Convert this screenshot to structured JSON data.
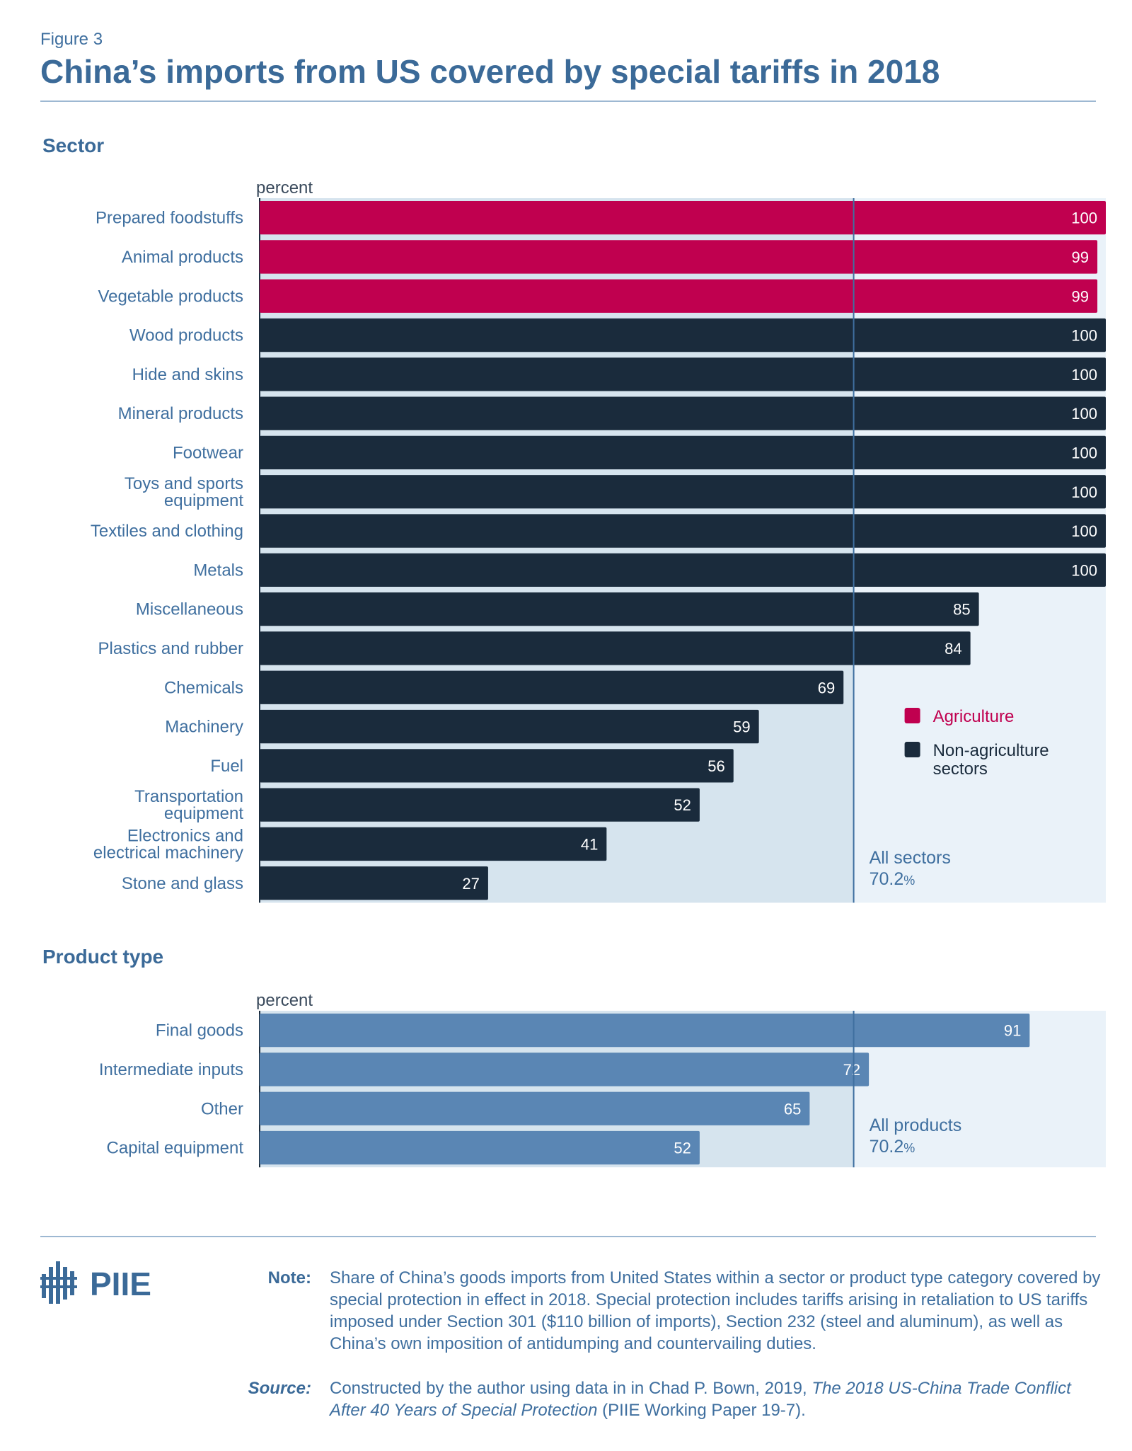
{
  "figure_label": "Figure 3",
  "title": "China’s imports from US covered by special tariffs in 2018",
  "colors": {
    "agriculture": "#c0004f",
    "non_agriculture": "#1a2b3c",
    "product": "#5a86b4",
    "bg_below_avg": "#d6e4ee",
    "bg_above_avg": "#eaf2f9",
    "text": "#3f6f9f"
  },
  "logo": {
    "text": "PIIE"
  },
  "chart_data": [
    {
      "type": "bar",
      "orientation": "horizontal",
      "section_title": "Sector",
      "unit_label": "percent",
      "xlim": [
        0,
        100
      ],
      "categories": [
        "Prepared foodstuffs",
        "Animal products",
        "Vegetable products",
        "Wood products",
        "Hide and skins",
        "Mineral products",
        "Footwear",
        "Toys and sports equipment",
        "Textiles and clothing",
        "Metals",
        "Miscellaneous",
        "Plastics and rubber",
        "Chemicals",
        "Machinery",
        "Fuel",
        "Transportation equipment",
        "Electronics and electrical machinery",
        "Stone and glass"
      ],
      "values": [
        100,
        99,
        99,
        100,
        100,
        100,
        100,
        100,
        100,
        100,
        85,
        84,
        69,
        59,
        56,
        52,
        41,
        27
      ],
      "groups": [
        "Agriculture",
        "Agriculture",
        "Agriculture",
        "Non-agriculture sectors",
        "Non-agriculture sectors",
        "Non-agriculture sectors",
        "Non-agriculture sectors",
        "Non-agriculture sectors",
        "Non-agriculture sectors",
        "Non-agriculture sectors",
        "Non-agriculture sectors",
        "Non-agriculture sectors",
        "Non-agriculture sectors",
        "Non-agriculture sectors",
        "Non-agriculture sectors",
        "Non-agriculture sectors",
        "Non-agriculture sectors",
        "Non-agriculture sectors"
      ],
      "legend": [
        {
          "name": "Agriculture",
          "color": "#c0004f"
        },
        {
          "name": "Non-agriculture sectors",
          "color": "#1a2b3c"
        }
      ],
      "reference_line": {
        "label": "All sectors",
        "value": 70.2,
        "value_text": "70.2",
        "unit": "%"
      }
    },
    {
      "type": "bar",
      "orientation": "horizontal",
      "section_title": "Product type",
      "unit_label": "percent",
      "xlim": [
        0,
        100
      ],
      "categories": [
        "Final goods",
        "Intermediate inputs",
        "Other",
        "Capital equipment"
      ],
      "values": [
        91,
        72,
        65,
        52
      ],
      "reference_line": {
        "label": "All products",
        "value": 70.2,
        "value_text": "70.2",
        "unit": "%"
      }
    }
  ],
  "note": {
    "label": "Note:",
    "text": "Share of China’s goods imports from United States within a sector or product type category covered by special protection in effect in 2018. Special protection includes tariffs arising in retaliation to US tariffs imposed under Section 301 ($110 billion of imports), Section 232 (steel and aluminum), as well as China’s own imposition of antidumping and countervailing duties."
  },
  "source": {
    "label": "Source:",
    "text_before": "Constructed by the author using data in in Chad P. Bown, 2019, ",
    "italic": "The 2018 US-China Trade Conflict After 40 Years of Special Protection",
    "text_after": " (PIIE Working Paper 19-7)."
  }
}
